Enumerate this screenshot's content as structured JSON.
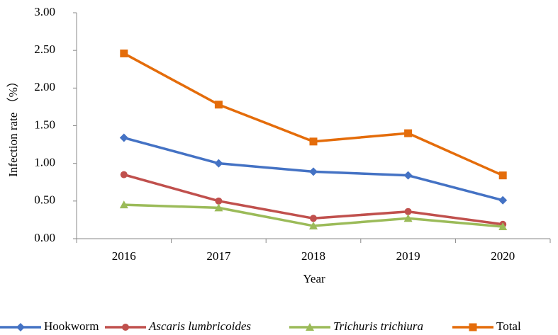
{
  "chart_data": {
    "type": "line",
    "x_label": "Year",
    "y_label": "Infection rate （%）",
    "categories": [
      "2016",
      "2017",
      "2018",
      "2019",
      "2020"
    ],
    "series": [
      {
        "name": "Hookworm",
        "color": "#4472c4",
        "marker": "diamond",
        "font_style": "normal",
        "values": [
          1.34,
          1.0,
          0.89,
          0.84,
          0.51
        ]
      },
      {
        "name": "Ascaris lumbricoides",
        "color": "#c0504d",
        "marker": "circle",
        "font_style": "italic",
        "values": [
          0.85,
          0.5,
          0.27,
          0.36,
          0.19
        ]
      },
      {
        "name": "Trichuris trichiura",
        "color": "#9bbb59",
        "marker": "triangle",
        "font_style": "italic",
        "values": [
          0.45,
          0.41,
          0.17,
          0.27,
          0.16
        ]
      },
      {
        "name": "Total",
        "color": "#e46c0a",
        "marker": "square",
        "font_style": "normal",
        "values": [
          2.46,
          1.78,
          1.29,
          1.4,
          0.84
        ]
      }
    ],
    "ylim": [
      0,
      3
    ],
    "yticks": [
      {
        "value": 0,
        "label": "0.00"
      },
      {
        "value": 0.5,
        "label": "0.50"
      },
      {
        "value": 1,
        "label": "1.00"
      },
      {
        "value": 1.5,
        "label": "1.50"
      },
      {
        "value": 2,
        "label": "2.00"
      },
      {
        "value": 2.5,
        "label": "2.50"
      },
      {
        "value": 3,
        "label": "3.00"
      }
    ],
    "grid": false,
    "legend": "bottom"
  }
}
